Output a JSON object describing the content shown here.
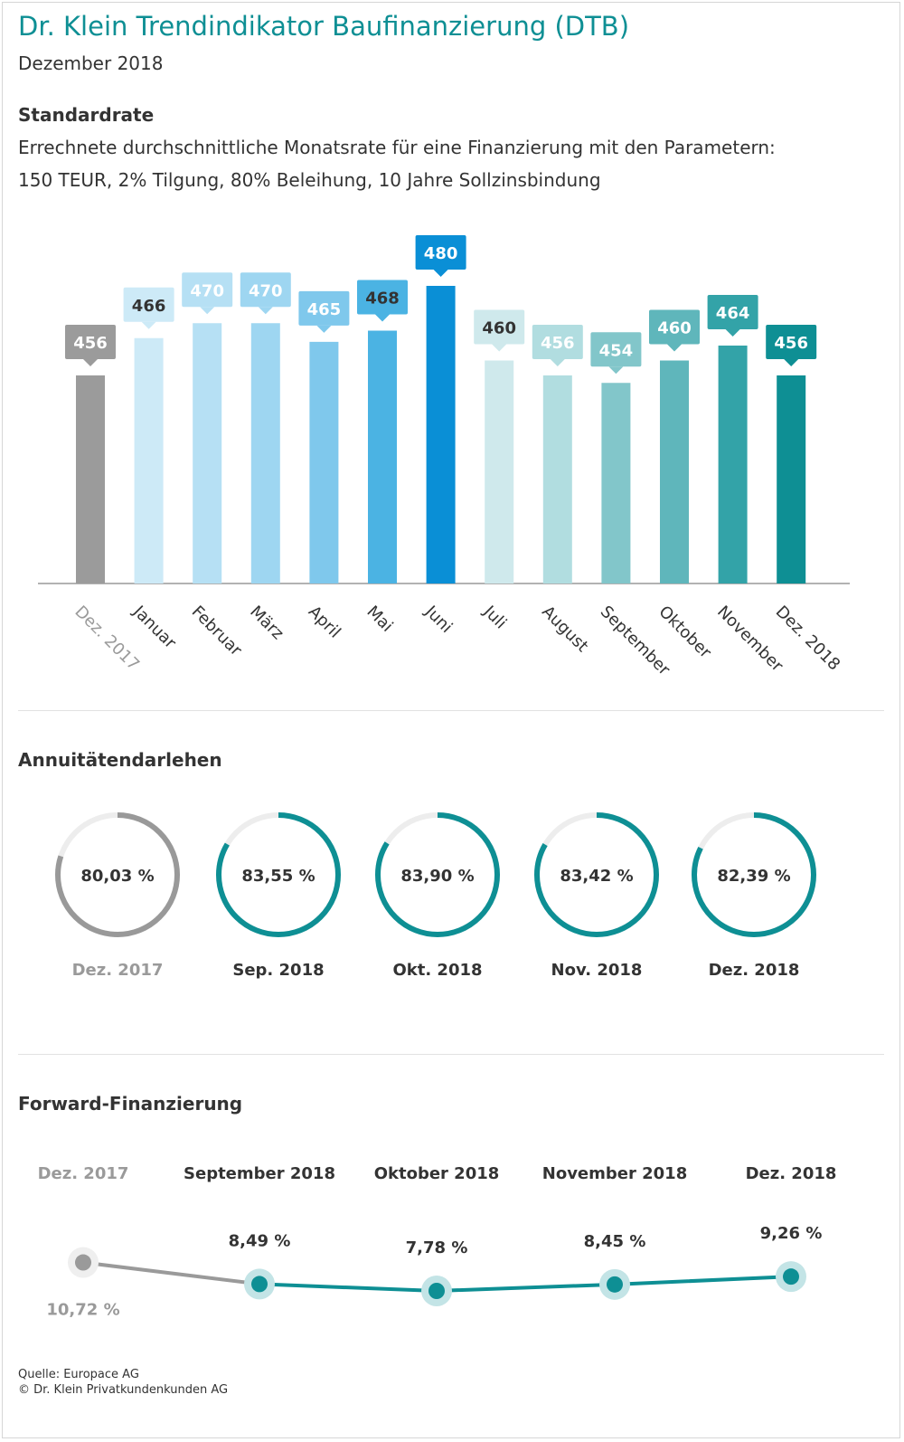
{
  "header": {
    "title": "Dr. Klein Trendindikator Baufinanzierung (DTB)",
    "subtitle": "Dezember 2018"
  },
  "standardrate": {
    "heading": "Standardrate",
    "description_line1": "Errechnete durchschnittliche Monatsrate für eine Finanzierung mit den Parametern:",
    "description_line2": "150 TEUR, 2% Tilgung, 80% Beleihung, 10 Jahre Sollzinsbindung"
  },
  "annuitaeten": {
    "heading": "Annuitätendarlehen"
  },
  "forward": {
    "heading": "Forward-Finanzierung"
  },
  "footer": {
    "source": "Quelle: Europace AG",
    "copyright": "© Dr. Klein Privatkundenkunden AG"
  },
  "colors": {
    "teal": "#0e8f94",
    "grey": "#999999"
  },
  "chart_data": [
    {
      "type": "bar",
      "categories": [
        "Dez. 2017",
        "Januar",
        "Februar",
        "März",
        "April",
        "Mai",
        "Juni",
        "Juli",
        "August",
        "September",
        "Oktober",
        "November",
        "Dez. 2018"
      ],
      "values": [
        456,
        466,
        470,
        470,
        465,
        468,
        480,
        460,
        456,
        454,
        460,
        464,
        456
      ],
      "labels": [
        "456",
        "466",
        "470",
        "470",
        "465",
        "468",
        "480",
        "460",
        "456",
        "454",
        "460",
        "464",
        "456"
      ],
      "colors": [
        "#9b9b9b",
        "#cdeaf7",
        "#b6e0f4",
        "#9ed6f1",
        "#7fc8ec",
        "#4bb3e3",
        "#0a8fd6",
        "#cfe9ec",
        "#b1dde0",
        "#82c6ca",
        "#5fb6bb",
        "#33a3a8",
        "#0e8f94"
      ],
      "label_colors": [
        "#ffffff",
        "#333333",
        "#ffffff",
        "#ffffff",
        "#ffffff",
        "#333333",
        "#ffffff",
        "#333333",
        "#ffffff",
        "#ffffff",
        "#ffffff",
        "#ffffff",
        "#ffffff"
      ],
      "ylim": [
        0,
        480
      ]
    },
    {
      "type": "pie",
      "categories": [
        "Dez. 2017",
        "Sep. 2018",
        "Okt. 2018",
        "Nov. 2018",
        "Dez. 2018"
      ],
      "values": [
        80.03,
        83.55,
        83.9,
        83.42,
        82.39
      ],
      "labels": [
        "80,03 %",
        "83,55 %",
        "83,90 %",
        "83,42 %",
        "82,39 %"
      ],
      "colors": [
        "#999999",
        "#0e8f94",
        "#0e8f94",
        "#0e8f94",
        "#0e8f94"
      ]
    },
    {
      "type": "line",
      "categories": [
        "Dez. 2017",
        "September 2018",
        "Oktober 2018",
        "November 2018",
        "Dez. 2018"
      ],
      "values": [
        10.72,
        8.49,
        7.78,
        8.45,
        9.26
      ],
      "labels": [
        "10,72 %",
        "8,49 %",
        "7,78 %",
        "8,45 %",
        "9,26 %"
      ]
    }
  ]
}
